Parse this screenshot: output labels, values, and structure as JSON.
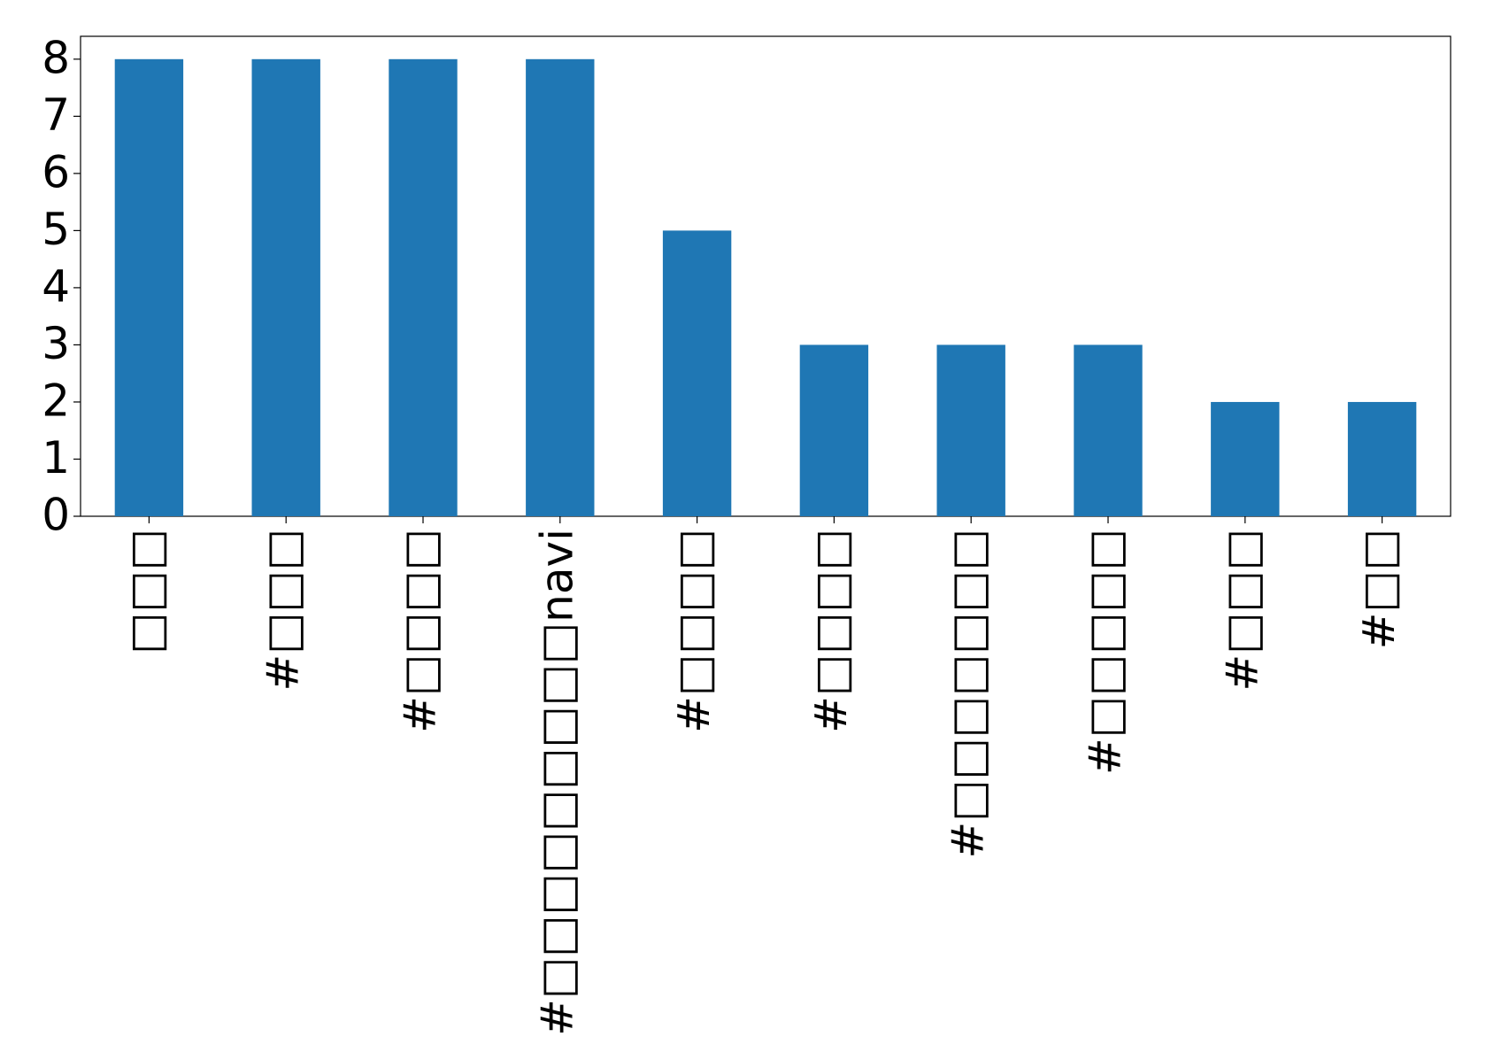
{
  "chart_data": {
    "type": "bar",
    "categories": [
      "□□□",
      "#□□□",
      "#□□□□",
      "#□□□□□□□□□navi",
      "#□□□□",
      "#□□□□",
      "#□□□□□□□",
      "#□□□□□",
      "#□□□",
      "#□□"
    ],
    "values": [
      8,
      8,
      8,
      8,
      5,
      3,
      3,
      3,
      2,
      2
    ],
    "color": "#1f77b4",
    "ylim": [
      0,
      8.4
    ],
    "yticks": [
      0,
      1,
      2,
      3,
      4,
      5,
      6,
      7,
      8
    ],
    "grid": false
  }
}
